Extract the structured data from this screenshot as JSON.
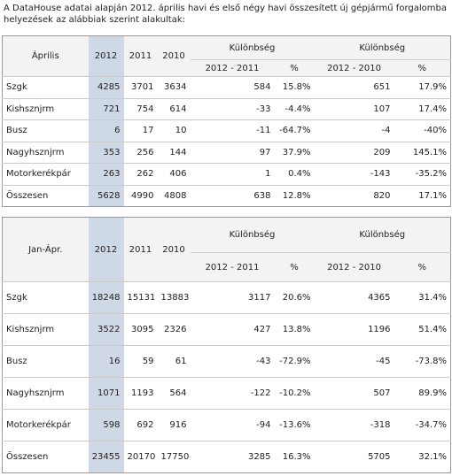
{
  "intro": "A DataHouse adatai alapján 2012. április havi és első négy havi összesített új gépjármű forgalomba helyezések az alábbiak szerint alakultak:",
  "tables": [
    {
      "header": {
        "label": "Április",
        "years": [
          "2012",
          "2011",
          "2010"
        ],
        "groups": [
          "Különbség",
          "Különbség"
        ],
        "sub": [
          "2012 - 2011",
          "%",
          "2012 - 2010",
          "%"
        ]
      },
      "rows": [
        [
          "Szgk",
          "4285",
          "3701",
          "3634",
          "584",
          "15.8%",
          "651",
          "17.9%"
        ],
        [
          "Kishsznjrm",
          "721",
          "754",
          "614",
          "-33",
          "-4.4%",
          "107",
          "17.4%"
        ],
        [
          "Busz",
          "6",
          "17",
          "10",
          "-11",
          "-64.7%",
          "-4",
          "-40%"
        ],
        [
          "Nagyhsznjrm",
          "353",
          "256",
          "144",
          "97",
          "37.9%",
          "209",
          "145.1%"
        ],
        [
          "Motorkerékpár",
          "263",
          "262",
          "406",
          "1",
          "0.4%",
          "-143",
          "-35.2%"
        ],
        [
          "Összesen",
          "5628",
          "4990",
          "4808",
          "638",
          "12.8%",
          "820",
          "17.1%"
        ]
      ]
    },
    {
      "header": {
        "label": "Jan-Ápr.",
        "years": [
          "2012",
          "2011",
          "2010"
        ],
        "groups": [
          "Különbség",
          "Különbség"
        ],
        "sub": [
          "2012 - 2011",
          "%",
          "2012 - 2010",
          "%"
        ]
      },
      "rows": [
        [
          "Szgk",
          "18248",
          "15131",
          "13883",
          "3117",
          "20.6%",
          "4365",
          "31.4%"
        ],
        [
          "Kishsznjrm",
          "3522",
          "3095",
          "2326",
          "427",
          "13.8%",
          "1196",
          "51.4%"
        ],
        [
          "Busz",
          "16",
          "59",
          "61",
          "-43",
          "-72.9%",
          "-45",
          "-73.8%"
        ],
        [
          "Nagyhsznjrm",
          "1071",
          "1193",
          "564",
          "-122",
          "-10.2%",
          "507",
          "89.9%"
        ],
        [
          "Motorkerékpár",
          "598",
          "692",
          "916",
          "-94",
          "-13.6%",
          "-318",
          "-34.7%"
        ],
        [
          "Összesen",
          "23455",
          "20170",
          "17750",
          "3285",
          "16.3%",
          "5705",
          "32.1%"
        ]
      ]
    }
  ]
}
